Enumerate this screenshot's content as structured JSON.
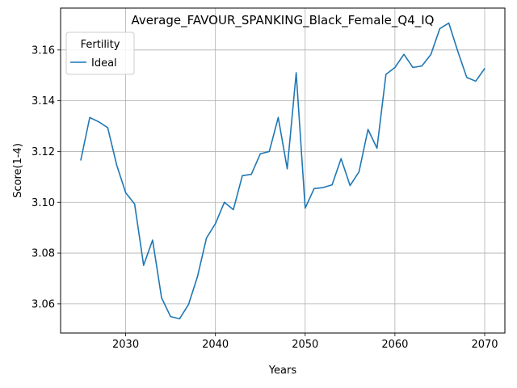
{
  "chart_data": {
    "type": "line",
    "title": "Average_FAVOUR_SPANKING_Black_Female_Q4_IQ",
    "xlabel": "Years",
    "ylabel": "Score(1-4)",
    "xlim": [
      2022.75,
      2072.25
    ],
    "ylim": [
      3.0485,
      3.1765
    ],
    "x_ticks": [
      2030,
      2040,
      2050,
      2060,
      2070
    ],
    "y_ticks": [
      3.06,
      3.08,
      3.1,
      3.12,
      3.14,
      3.16
    ],
    "y_tick_labels": [
      "3.06",
      "3.08",
      "3.10",
      "3.12",
      "3.14",
      "3.16"
    ],
    "grid": true,
    "legend": {
      "title": "Fertility",
      "placement": "top-left"
    },
    "colors": {
      "Ideal": "#1f77b4"
    },
    "x": [
      2025,
      2026,
      2027,
      2028,
      2029,
      2030,
      2031,
      2032,
      2033,
      2034,
      2035,
      2036,
      2037,
      2038,
      2039,
      2040,
      2041,
      2042,
      2043,
      2044,
      2045,
      2046,
      2047,
      2048,
      2049,
      2050,
      2051,
      2052,
      2053,
      2054,
      2055,
      2056,
      2057,
      2058,
      2059,
      2060,
      2061,
      2062,
      2063,
      2064,
      2065,
      2066,
      2067,
      2068,
      2069,
      2070
    ],
    "series": [
      {
        "name": "Ideal",
        "values": [
          3.1166,
          3.1334,
          3.1317,
          3.1294,
          3.1147,
          3.1038,
          3.0993,
          3.0752,
          3.0851,
          3.0624,
          3.055,
          3.0541,
          3.0597,
          3.0707,
          3.0859,
          3.0916,
          3.1,
          3.0971,
          3.1105,
          3.111,
          3.1191,
          3.12,
          3.1334,
          3.1132,
          3.151,
          3.0977,
          3.1054,
          3.1058,
          3.1069,
          3.1172,
          3.1066,
          3.112,
          3.1287,
          3.1213,
          3.1504,
          3.1531,
          3.1583,
          3.1531,
          3.1537,
          3.1582,
          3.1684,
          3.1706,
          3.1595,
          3.1492,
          3.1477,
          3.1527
        ]
      }
    ]
  }
}
